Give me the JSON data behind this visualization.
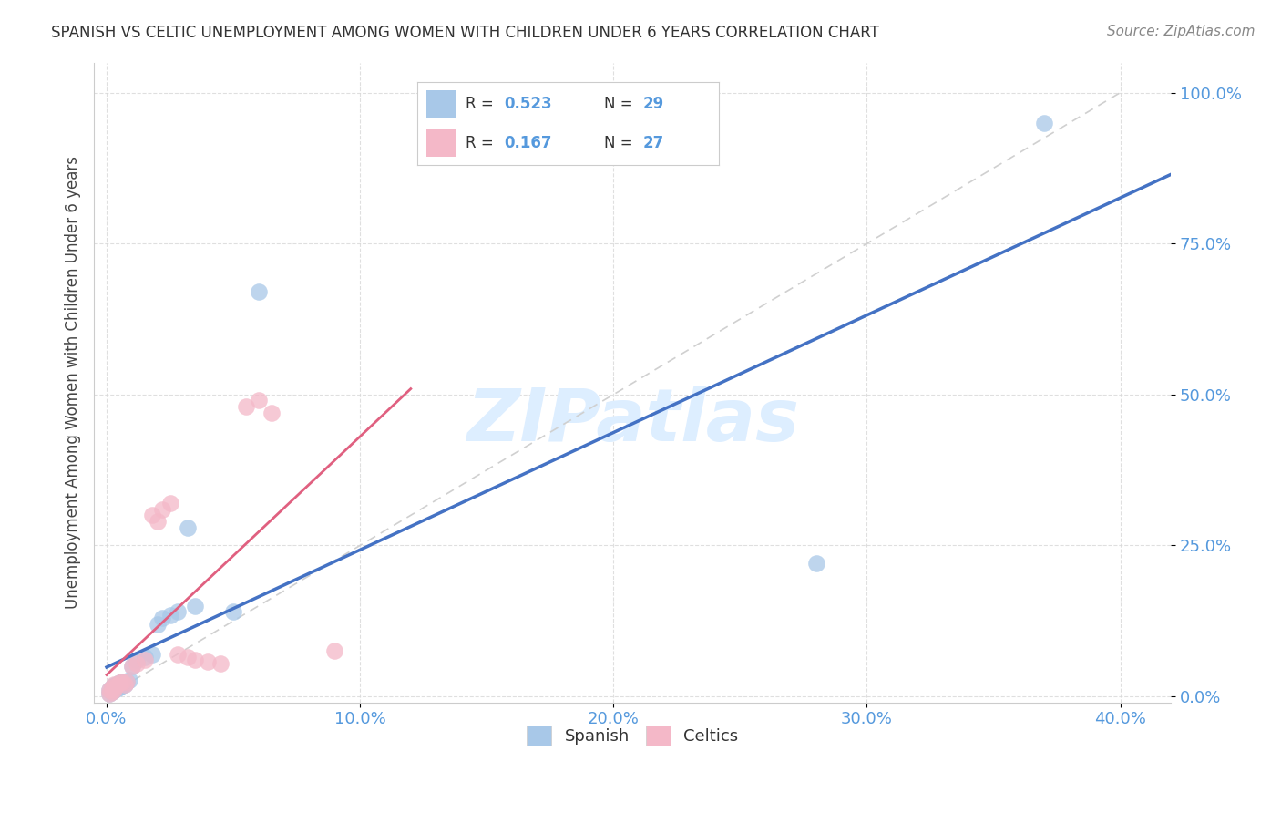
{
  "title": "SPANISH VS CELTIC UNEMPLOYMENT AMONG WOMEN WITH CHILDREN UNDER 6 YEARS CORRELATION CHART",
  "source": "Source: ZipAtlas.com",
  "ylabel": "Unemployment Among Women with Children Under 6 years",
  "x_tick_vals": [
    0.0,
    0.1,
    0.2,
    0.3,
    0.4
  ],
  "x_tick_labels": [
    "0.0%",
    "10.0%",
    "20.0%",
    "30.0%",
    "40.0%"
  ],
  "y_tick_vals": [
    0.0,
    0.25,
    0.5,
    0.75,
    1.0
  ],
  "y_tick_labels": [
    "0.0%",
    "25.0%",
    "50.0%",
    "75.0%",
    "100.0%"
  ],
  "xlim": [
    -0.005,
    0.42
  ],
  "ylim": [
    -0.01,
    1.05
  ],
  "legend_r_spanish": "0.523",
  "legend_n_spanish": "29",
  "legend_r_celtics": "0.167",
  "legend_n_celtics": "27",
  "spanish_color": "#a8c8e8",
  "celtics_color": "#f4b8c8",
  "spanish_line_color": "#4472c4",
  "celtics_line_color": "#e06080",
  "diagonal_color": "#d0d0d0",
  "watermark": "ZIPatlas",
  "watermark_color": "#ddeeff",
  "tick_color": "#5599dd",
  "spanish_x": [
    0.001,
    0.001,
    0.002,
    0.002,
    0.003,
    0.003,
    0.004,
    0.004,
    0.005,
    0.005,
    0.006,
    0.006,
    0.007,
    0.008,
    0.009,
    0.01,
    0.012,
    0.015,
    0.018,
    0.02,
    0.022,
    0.025,
    0.028,
    0.032,
    0.035,
    0.05,
    0.06,
    0.28,
    0.37
  ],
  "spanish_y": [
    0.005,
    0.01,
    0.008,
    0.015,
    0.01,
    0.018,
    0.012,
    0.02,
    0.015,
    0.022,
    0.018,
    0.025,
    0.02,
    0.025,
    0.028,
    0.05,
    0.06,
    0.065,
    0.07,
    0.12,
    0.13,
    0.135,
    0.14,
    0.28,
    0.15,
    0.14,
    0.67,
    0.22,
    0.95
  ],
  "celtics_x": [
    0.001,
    0.001,
    0.002,
    0.002,
    0.003,
    0.003,
    0.004,
    0.005,
    0.006,
    0.007,
    0.008,
    0.01,
    0.012,
    0.015,
    0.018,
    0.02,
    0.022,
    0.025,
    0.028,
    0.032,
    0.035,
    0.04,
    0.045,
    0.055,
    0.06,
    0.065,
    0.09
  ],
  "celtics_y": [
    0.005,
    0.01,
    0.008,
    0.015,
    0.01,
    0.02,
    0.018,
    0.022,
    0.025,
    0.02,
    0.025,
    0.05,
    0.055,
    0.06,
    0.3,
    0.29,
    0.31,
    0.32,
    0.07,
    0.065,
    0.06,
    0.058,
    0.055,
    0.48,
    0.49,
    0.47,
    0.075
  ]
}
